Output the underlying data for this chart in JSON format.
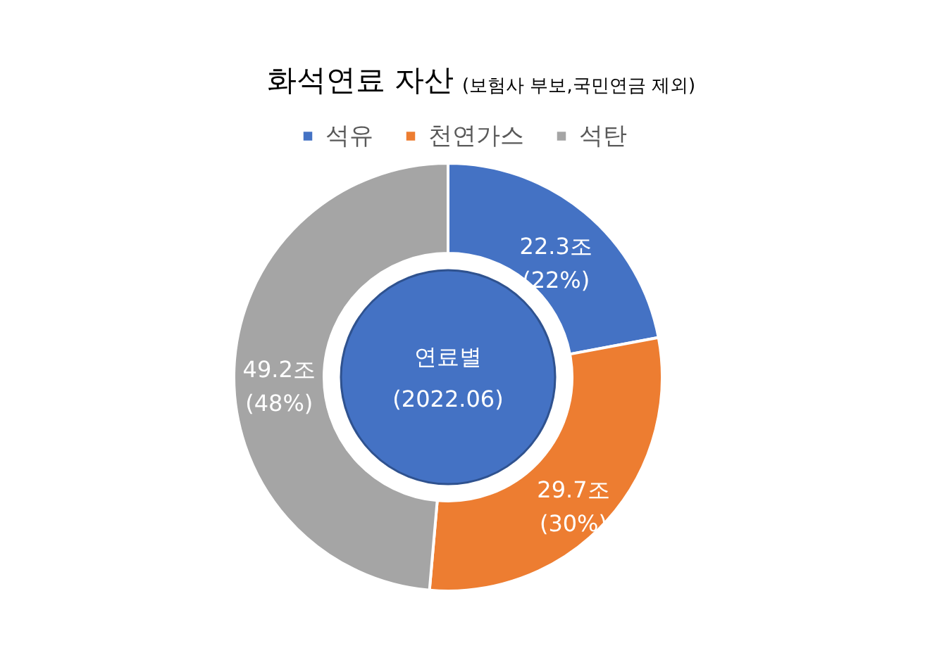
{
  "chart_data": {
    "type": "donut",
    "title": "화석연료 자산",
    "subtitle": "(보험사 부보,국민연금 제외)",
    "categories": [
      "석유",
      "천연가스",
      "석탄"
    ],
    "values": [
      22.3,
      29.7,
      49.2
    ],
    "colors": [
      "#4472c4",
      "#ed7d31",
      "#a5a5a5"
    ],
    "value_labels": [
      "22.3조\n(22%)",
      "29.7조\n(30%)",
      "49.2조\n(48%)"
    ],
    "annotations": [
      "연료별",
      "(2022.06)"
    ],
    "legend": "top"
  }
}
